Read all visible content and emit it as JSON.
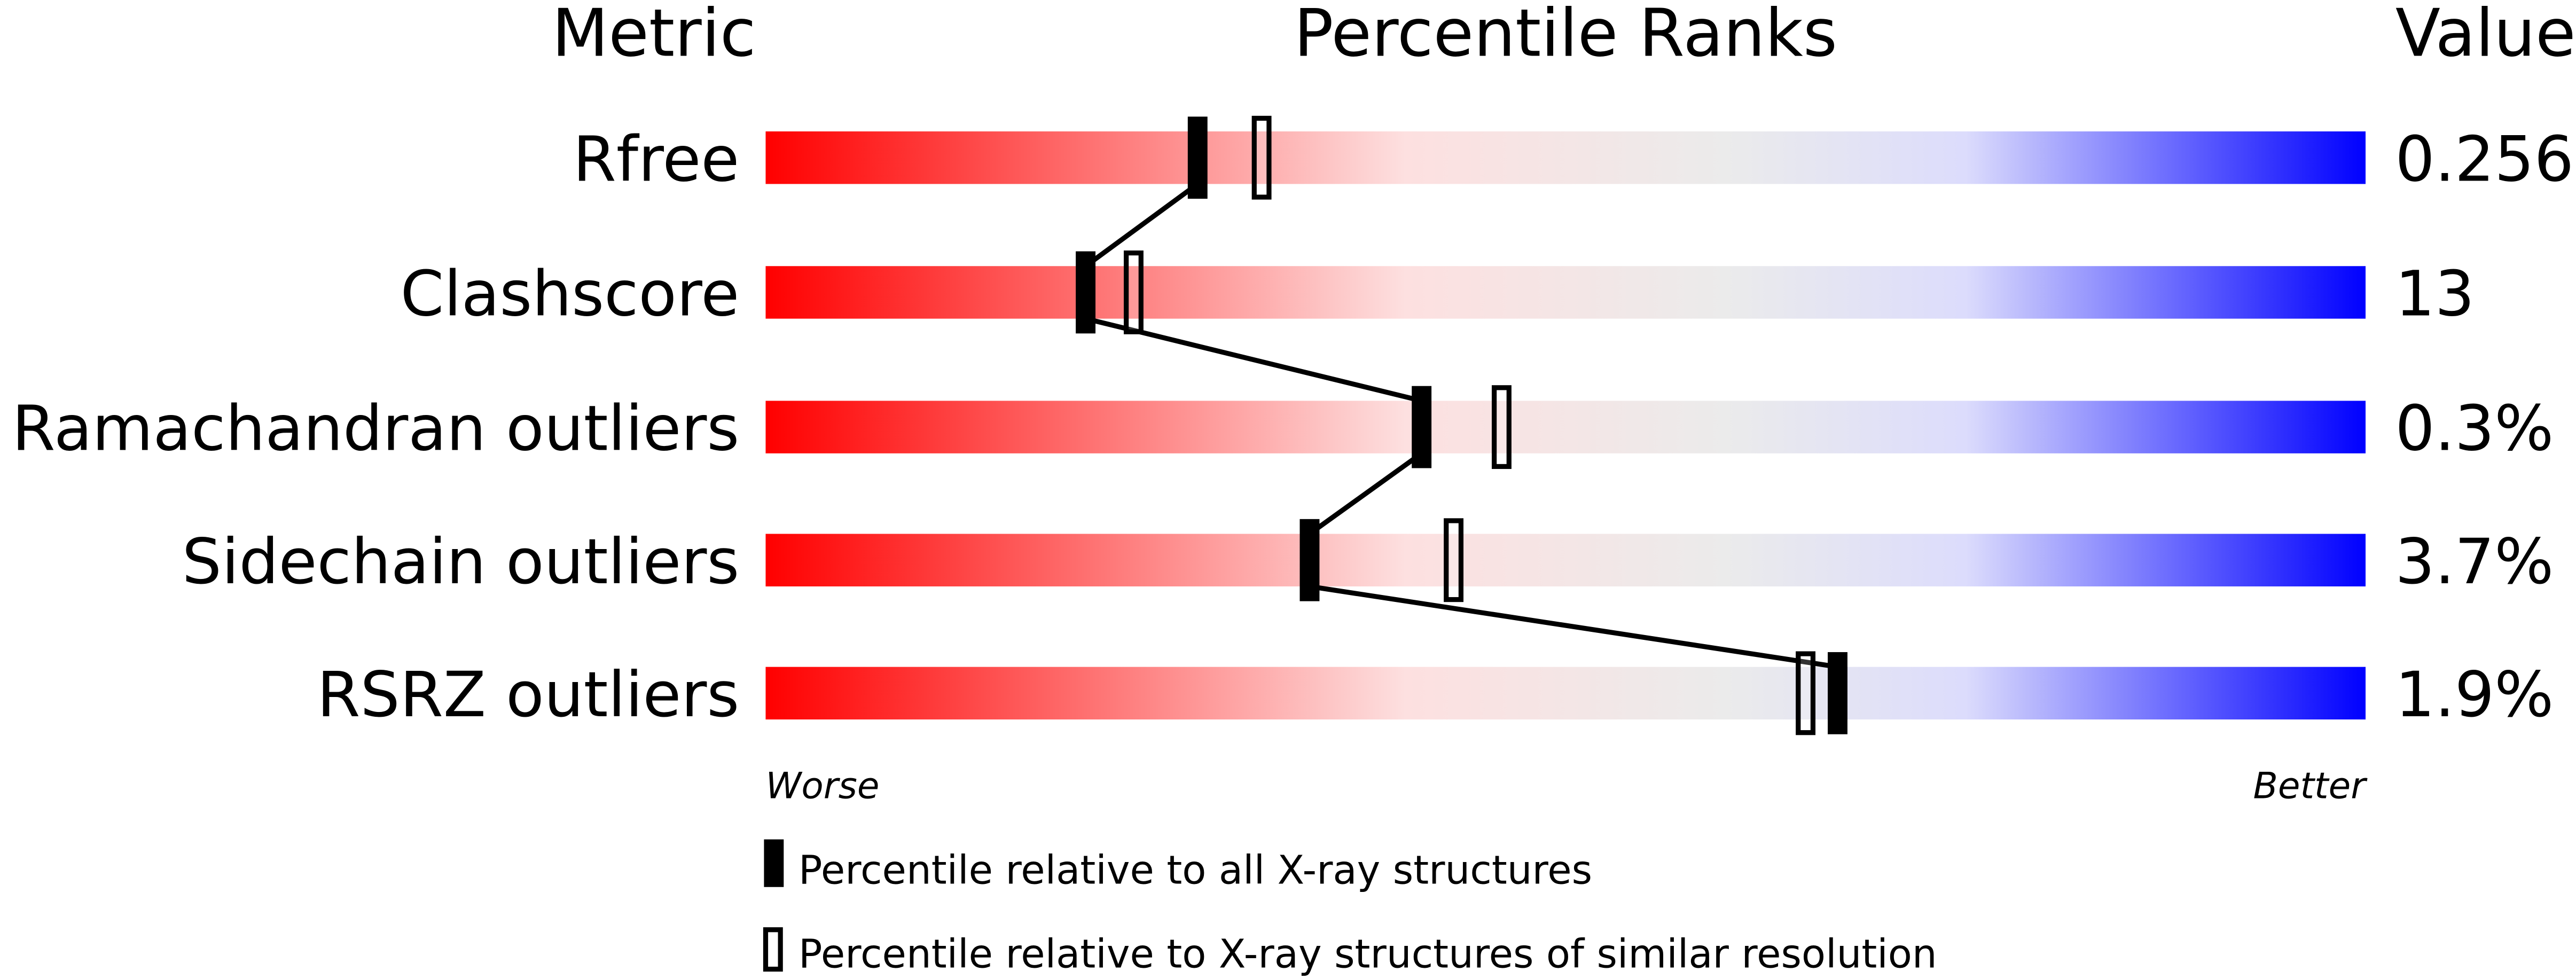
{
  "chart_data": {
    "type": "bar",
    "headers": {
      "metric": "Metric",
      "ranks": "Percentile Ranks",
      "value": "Value"
    },
    "categories": [
      "Rfree",
      "Clashscore",
      "Ramachandran outliers",
      "Sidechain outliers",
      "RSRZ outliers"
    ],
    "values_text": [
      "0.256",
      "13",
      "0.3%",
      "3.7%",
      "1.9%"
    ],
    "series": [
      {
        "name": "Percentile relative to all X-ray structures",
        "values": [
          27,
          20,
          41,
          34,
          67
        ]
      },
      {
        "name": "Percentile relative to X-ray structures of similar resolution",
        "values": [
          31,
          23,
          46,
          43,
          65
        ]
      }
    ],
    "xlim": [
      0,
      100
    ],
    "axis_labels": {
      "left": "Worse",
      "right": "Better"
    },
    "gradient_colors": [
      "#ff0000",
      "#fde0e0",
      "#ebebeb",
      "#dcdcfc",
      "#0000ff"
    ],
    "grid": false,
    "legend_placement": "bottom"
  }
}
